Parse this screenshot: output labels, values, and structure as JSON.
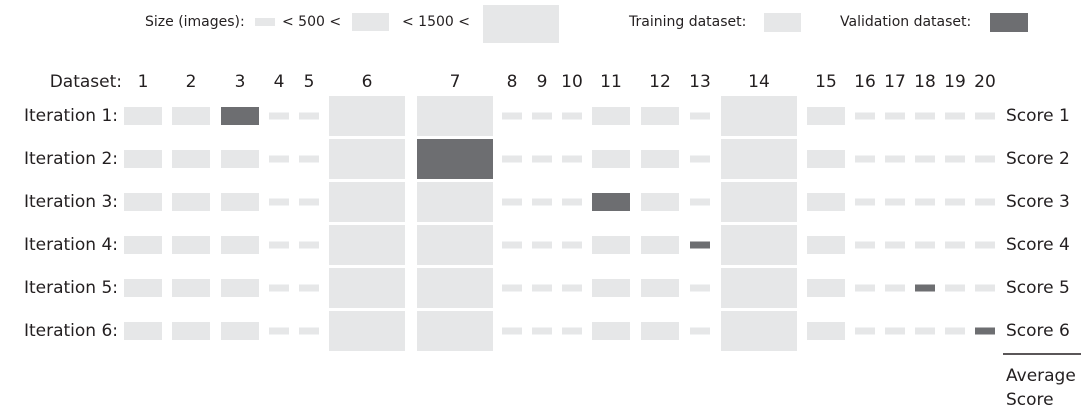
{
  "legend": {
    "size_label": "Size (images):",
    "threshold_1": "< 500 <",
    "threshold_2": "< 1500 <",
    "training": "Training dataset:",
    "validation": "Validation dataset:"
  },
  "header": "Dataset:",
  "datasets": [
    "1",
    "2",
    "3",
    "4",
    "5",
    "6",
    "7",
    "8",
    "9",
    "10",
    "11",
    "12",
    "13",
    "14",
    "15",
    "16",
    "17",
    "18",
    "19",
    "20"
  ],
  "iterations": [
    "Iteration 1:",
    "Iteration 2:",
    "Iteration 3:",
    "Iteration 4:",
    "Iteration 5:",
    "Iteration 6:"
  ],
  "scores": [
    "Score 1",
    "Score 2",
    "Score 3",
    "Score 4",
    "Score 5",
    "Score 6"
  ],
  "average": [
    "Average",
    "Score"
  ]
}
